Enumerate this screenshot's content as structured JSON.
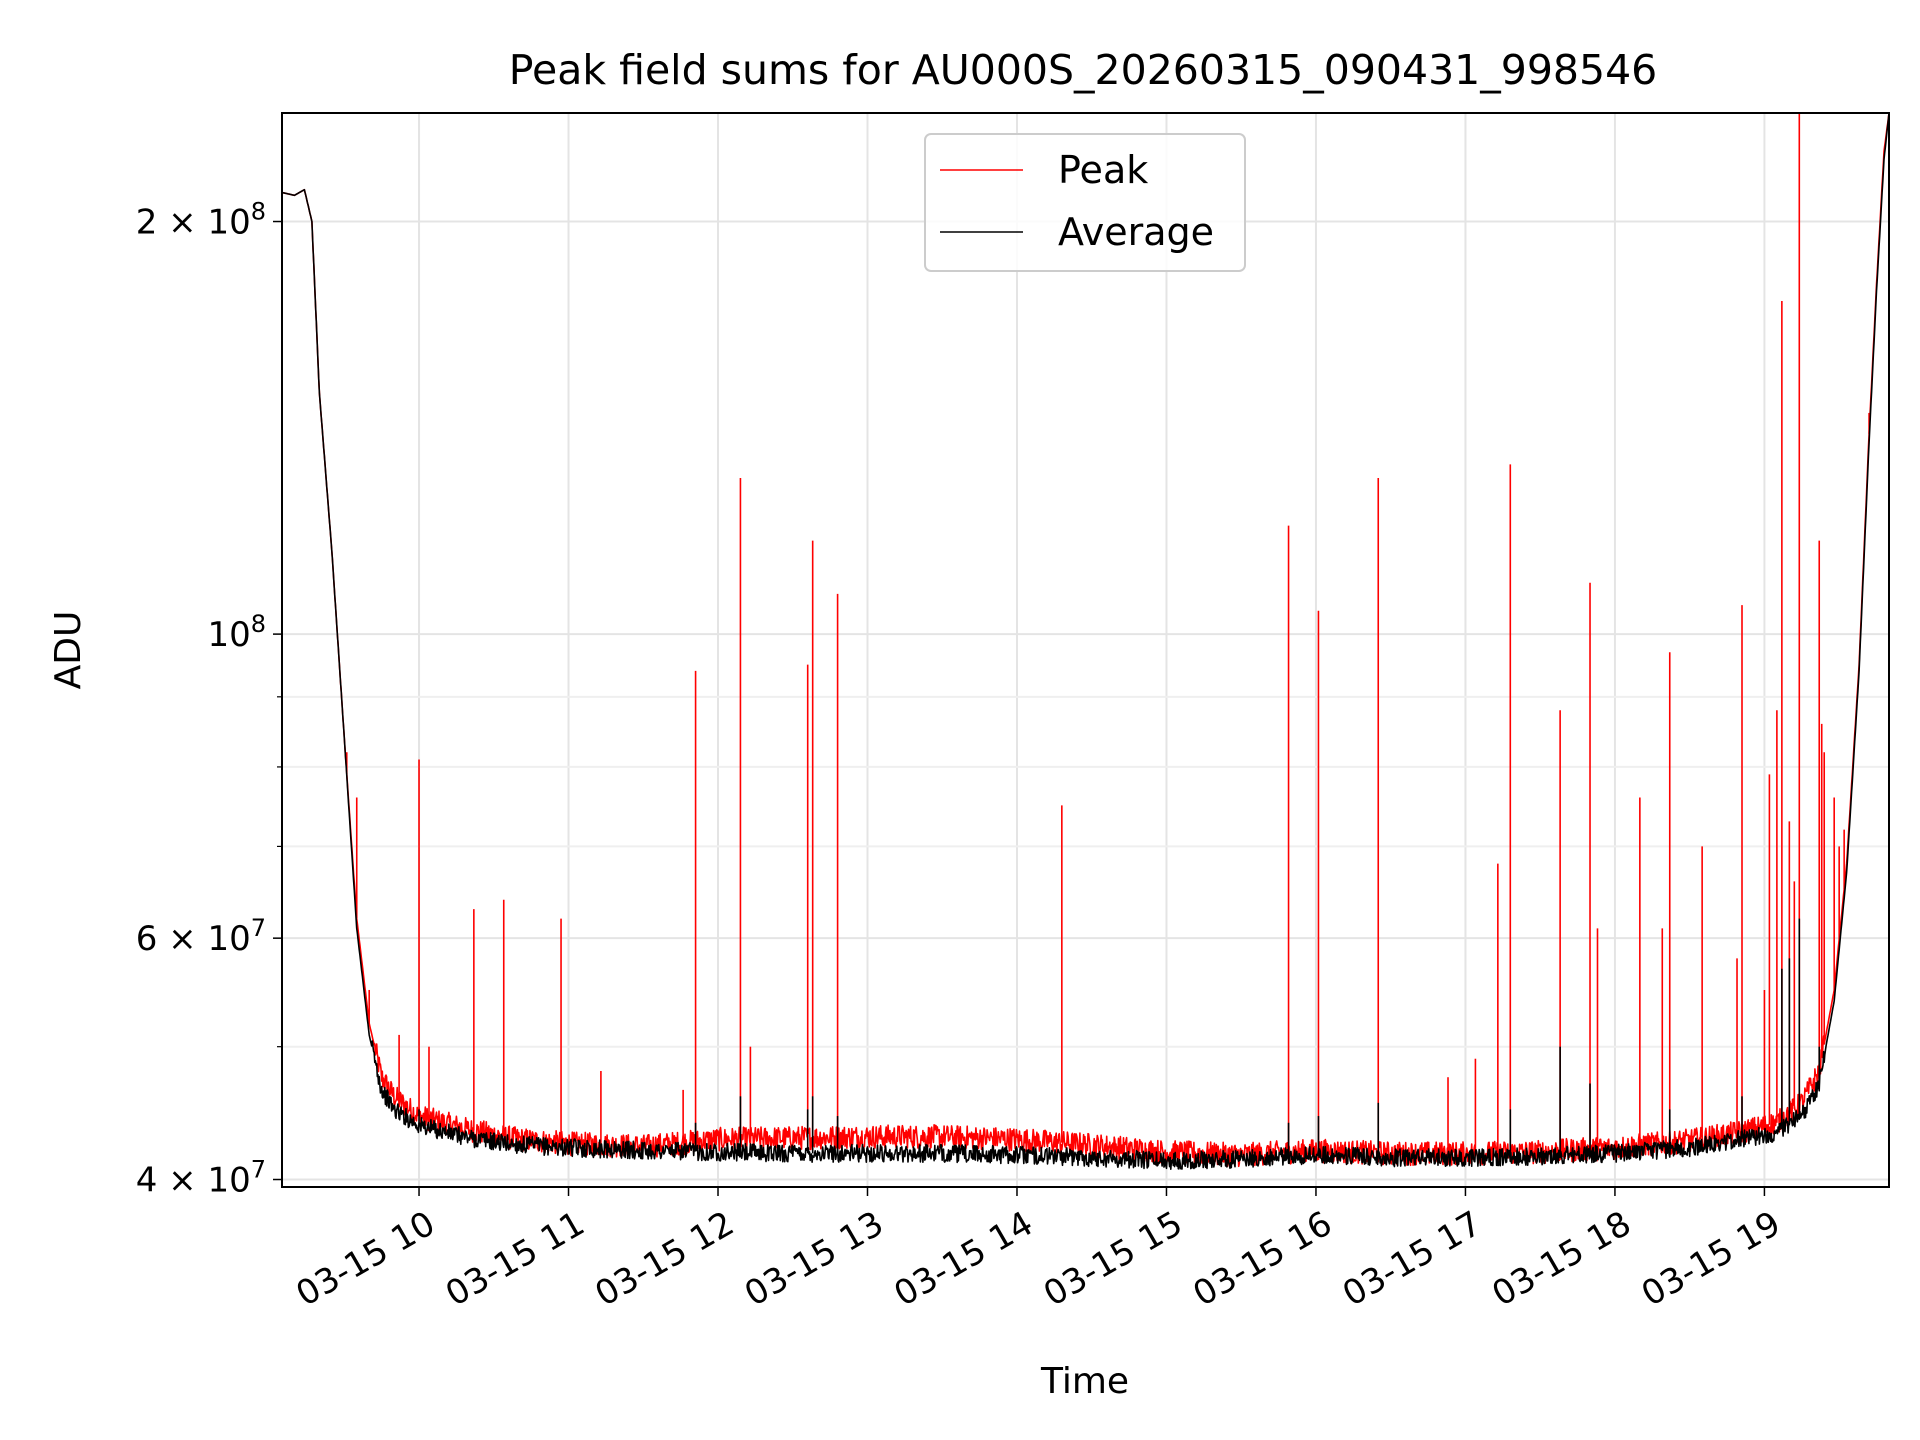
{
  "chart_data": {
    "type": "line",
    "title": "Peak field sums for AU000S_20260315_090431_998546",
    "xlabel": "Time",
    "ylabel": "ADU",
    "yscale": "log",
    "xlim": [
      "2026-03-15 09:05",
      "2026-03-15 19:50"
    ],
    "ylim": [
      39500000,
      240000000
    ],
    "grid": true,
    "legend_position": "top-center",
    "x_ticks": [
      "03-15 10",
      "03-15 11",
      "03-15 12",
      "03-15 13",
      "03-15 14",
      "03-15 15",
      "03-15 16",
      "03-15 17",
      "03-15 18",
      "03-15 19"
    ],
    "y_major_ticks": [
      {
        "value": 40000000,
        "label": "4 × 10^7"
      },
      {
        "value": 60000000,
        "label": "6 × 10^7"
      },
      {
        "value": 100000000,
        "label": "10^8"
      },
      {
        "value": 200000000,
        "label": "2 × 10^8"
      }
    ],
    "y_minor_ticks": [
      50000000,
      70000000,
      80000000,
      90000000
    ],
    "colors": {
      "peak": "#ff0000",
      "average": "#000000"
    },
    "series": [
      {
        "name": "Peak",
        "color": "#ff0000",
        "baseline": [
          [
            "09:05",
            210000000
          ],
          [
            "09:10",
            209000000
          ],
          [
            "09:14",
            211000000
          ],
          [
            "09:17",
            200000000
          ],
          [
            "09:20",
            150000000
          ],
          [
            "09:25",
            115000000
          ],
          [
            "09:30",
            84000000
          ],
          [
            "09:35",
            62000000
          ],
          [
            "09:40",
            52000000
          ],
          [
            "09:45",
            47500000
          ],
          [
            "09:50",
            46000000
          ],
          [
            "10:00",
            44500000
          ],
          [
            "10:20",
            43500000
          ],
          [
            "10:40",
            42800000
          ],
          [
            "11:00",
            42500000
          ],
          [
            "11:30",
            42300000
          ],
          [
            "12:00",
            42800000
          ],
          [
            "12:30",
            42900000
          ],
          [
            "13:00",
            43000000
          ],
          [
            "13:30",
            43000000
          ],
          [
            "14:00",
            42800000
          ],
          [
            "14:30",
            42400000
          ],
          [
            "15:00",
            41900000
          ],
          [
            "15:30",
            41700000
          ],
          [
            "16:00",
            42000000
          ],
          [
            "16:30",
            41800000
          ],
          [
            "17:00",
            41800000
          ],
          [
            "17:30",
            41900000
          ],
          [
            "18:00",
            42200000
          ],
          [
            "18:30",
            42700000
          ],
          [
            "18:50",
            43300000
          ],
          [
            "19:05",
            44000000
          ],
          [
            "19:15",
            45500000
          ],
          [
            "19:22",
            48000000
          ],
          [
            "19:28",
            55000000
          ],
          [
            "19:33",
            68000000
          ],
          [
            "19:38",
            95000000
          ],
          [
            "19:42",
            140000000
          ],
          [
            "19:45",
            180000000
          ],
          [
            "19:48",
            225000000
          ],
          [
            "19:50",
            240000000
          ]
        ],
        "spikes": [
          [
            "09:31",
            82000000
          ],
          [
            "09:35",
            76000000
          ],
          [
            "09:40",
            55000000
          ],
          [
            "09:52",
            51000000
          ],
          [
            "10:00",
            81000000
          ],
          [
            "10:04",
            50000000
          ],
          [
            "10:22",
            63000000
          ],
          [
            "10:34",
            64000000
          ],
          [
            "10:57",
            62000000
          ],
          [
            "11:13",
            48000000
          ],
          [
            "11:46",
            46500000
          ],
          [
            "11:51",
            94000000
          ],
          [
            "12:09",
            130000000
          ],
          [
            "12:13",
            50000000
          ],
          [
            "12:36",
            95000000
          ],
          [
            "12:38",
            117000000
          ],
          [
            "12:48",
            107000000
          ],
          [
            "14:18",
            75000000
          ],
          [
            "15:49",
            120000000
          ],
          [
            "16:01",
            104000000
          ],
          [
            "16:25",
            130000000
          ],
          [
            "16:53",
            47500000
          ],
          [
            "17:04",
            49000000
          ],
          [
            "17:13",
            68000000
          ],
          [
            "17:18",
            133000000
          ],
          [
            "17:38",
            88000000
          ],
          [
            "17:50",
            109000000
          ],
          [
            "17:53",
            61000000
          ],
          [
            "18:10",
            76000000
          ],
          [
            "18:19",
            61000000
          ],
          [
            "18:22",
            97000000
          ],
          [
            "18:35",
            70000000
          ],
          [
            "18:49",
            58000000
          ],
          [
            "18:51",
            105000000
          ],
          [
            "19:00",
            55000000
          ],
          [
            "19:02",
            79000000
          ],
          [
            "19:05",
            88000000
          ],
          [
            "19:07",
            175000000
          ],
          [
            "19:10",
            73000000
          ],
          [
            "19:12",
            66000000
          ],
          [
            "19:14",
            240000000
          ],
          [
            "19:22",
            117000000
          ],
          [
            "19:23",
            86000000
          ],
          [
            "19:24",
            82000000
          ],
          [
            "19:28",
            76000000
          ],
          [
            "19:30",
            70000000
          ],
          [
            "19:32",
            72000000
          ],
          [
            "19:42",
            145000000
          ]
        ]
      },
      {
        "name": "Average",
        "color": "#000000",
        "baseline": [
          [
            "09:05",
            210000000
          ],
          [
            "09:10",
            209000000
          ],
          [
            "09:14",
            211000000
          ],
          [
            "09:17",
            200000000
          ],
          [
            "09:20",
            150000000
          ],
          [
            "09:25",
            115000000
          ],
          [
            "09:30",
            84000000
          ],
          [
            "09:35",
            61000000
          ],
          [
            "09:40",
            51000000
          ],
          [
            "09:45",
            46500000
          ],
          [
            "09:50",
            45000000
          ],
          [
            "10:00",
            43800000
          ],
          [
            "10:20",
            42900000
          ],
          [
            "10:40",
            42400000
          ],
          [
            "11:00",
            42200000
          ],
          [
            "11:30",
            42000000
          ],
          [
            "12:00",
            41900000
          ],
          [
            "12:30",
            41800000
          ],
          [
            "13:00",
            41800000
          ],
          [
            "13:30",
            41800000
          ],
          [
            "14:00",
            41700000
          ],
          [
            "14:30",
            41500000
          ],
          [
            "15:00",
            41300000
          ],
          [
            "15:30",
            41400000
          ],
          [
            "16:00",
            41700000
          ],
          [
            "16:30",
            41500000
          ],
          [
            "17:00",
            41500000
          ],
          [
            "17:30",
            41600000
          ],
          [
            "18:00",
            41800000
          ],
          [
            "18:30",
            42200000
          ],
          [
            "18:50",
            42800000
          ],
          [
            "19:05",
            43300000
          ],
          [
            "19:15",
            44500000
          ],
          [
            "19:22",
            47000000
          ],
          [
            "19:28",
            54000000
          ],
          [
            "19:33",
            67000000
          ],
          [
            "19:38",
            94000000
          ],
          [
            "19:42",
            138000000
          ],
          [
            "19:45",
            178000000
          ],
          [
            "19:48",
            222000000
          ],
          [
            "19:50",
            240000000
          ]
        ],
        "spikes": [
          [
            "09:52",
            44500000
          ],
          [
            "10:00",
            45000000
          ],
          [
            "11:51",
            44000000
          ],
          [
            "12:09",
            46000000
          ],
          [
            "12:36",
            45000000
          ],
          [
            "12:38",
            46000000
          ],
          [
            "12:48",
            44500000
          ],
          [
            "15:49",
            44000000
          ],
          [
            "16:01",
            44500000
          ],
          [
            "16:25",
            45500000
          ],
          [
            "17:18",
            45000000
          ],
          [
            "17:38",
            50000000
          ],
          [
            "17:50",
            47000000
          ],
          [
            "18:22",
            45000000
          ],
          [
            "18:51",
            46000000
          ],
          [
            "19:07",
            57000000
          ],
          [
            "19:10",
            58000000
          ],
          [
            "19:14",
            62000000
          ],
          [
            "19:22",
            50000000
          ]
        ]
      }
    ]
  }
}
